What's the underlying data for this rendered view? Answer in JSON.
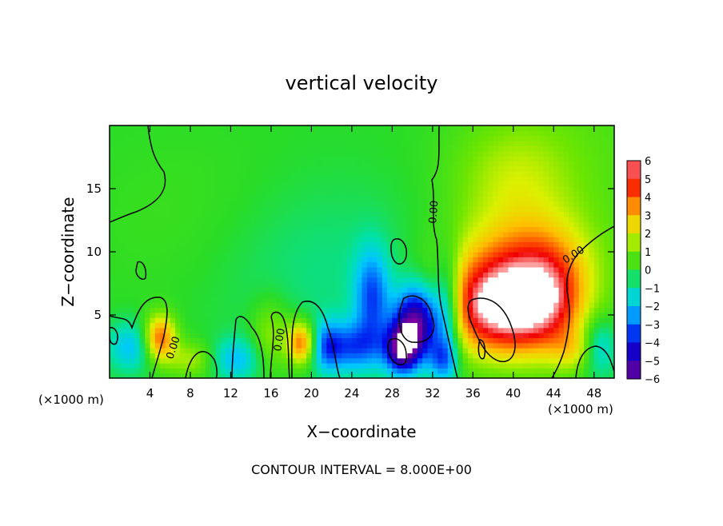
{
  "chart_data": {
    "type": "heatmap",
    "title": "vertical velocity",
    "xlabel": "X−coordinate",
    "ylabel": "Z−coordinate",
    "x_unit_left": "(×1000 m)",
    "x_unit_right": "(×1000 m)",
    "xlim": [
      0,
      50
    ],
    "ylim": [
      0,
      20
    ],
    "x_ticks": [
      4,
      8,
      12,
      16,
      20,
      24,
      28,
      32,
      36,
      40,
      44,
      48
    ],
    "y_ticks": [
      5,
      10,
      15
    ],
    "colorbar": {
      "min": -6,
      "max": 6,
      "ticks": [
        "6",
        "5",
        "4",
        "3",
        "2",
        "1",
        "0",
        "−1",
        "−2",
        "−3",
        "−4",
        "−5",
        "−6"
      ]
    },
    "contour_labels": [
      "0.00",
      "0.00",
      "0.00",
      "0.00"
    ],
    "footer": "CONTOUR INTERVAL = 8.000E+00",
    "features": [
      {
        "x": 39.0,
        "z": 5.5,
        "value": 6.0,
        "sx": 4.2,
        "sz": 2.6
      },
      {
        "x": 41.0,
        "z": 9.0,
        "value": 3.0,
        "sx": 5.0,
        "sz": 3.2
      },
      {
        "x": 43.5,
        "z": 6.5,
        "value": 2.0,
        "sx": 2.4,
        "sz": 3.0
      },
      {
        "x": 30.5,
        "z": 4.5,
        "value": -6.0,
        "sx": 1.6,
        "sz": 2.0
      },
      {
        "x": 29.0,
        "z": 2.3,
        "value": -5.0,
        "sx": 1.2,
        "sz": 1.4
      },
      {
        "x": 26.0,
        "z": 6.5,
        "value": -3.0,
        "sx": 1.2,
        "sz": 2.6
      },
      {
        "x": 24.0,
        "z": 2.5,
        "value": -3.0,
        "sx": 2.2,
        "sz": 1.4
      },
      {
        "x": 33.5,
        "z": 5.5,
        "value": -3.0,
        "sx": 1.0,
        "sz": 3.0
      },
      {
        "x": 5.0,
        "z": 3.2,
        "value": 4.0,
        "sx": 1.1,
        "sz": 1.3
      },
      {
        "x": 19.0,
        "z": 2.8,
        "value": 4.0,
        "sx": 1.0,
        "sz": 1.2
      },
      {
        "x": 16.0,
        "z": 3.5,
        "value": 1.5,
        "sx": 1.4,
        "sz": 2.0
      },
      {
        "x": 8.0,
        "z": 1.5,
        "value": 1.5,
        "sx": 1.6,
        "sz": 1.0
      },
      {
        "x": 46.0,
        "z": 2.2,
        "value": 1.5,
        "sx": 1.6,
        "sz": 1.2
      },
      {
        "x": 2.0,
        "z": 2.5,
        "value": -2.0,
        "sx": 1.6,
        "sz": 1.4
      },
      {
        "x": 12.5,
        "z": 1.5,
        "value": -2.0,
        "sx": 1.6,
        "sz": 1.2
      },
      {
        "x": 21.5,
        "z": 2.5,
        "value": -2.0,
        "sx": 1.0,
        "sz": 1.4
      },
      {
        "x": 48.5,
        "z": 2.5,
        "value": -2.0,
        "sx": 1.2,
        "sz": 1.6
      },
      {
        "x": 33.0,
        "z": 1.5,
        "value": -2.5,
        "sx": 1.0,
        "sz": 1.2
      },
      {
        "x": 20.0,
        "z": 9.0,
        "value": -0.8,
        "sx": 8.0,
        "sz": 5.0
      },
      {
        "x": 10.0,
        "z": 12.0,
        "value": 0.4,
        "sx": 8.0,
        "sz": 5.0
      },
      {
        "x": 45.0,
        "z": 18.0,
        "value": 0.6,
        "sx": 8.0,
        "sz": 5.0
      },
      {
        "x": 40.0,
        "z": 16.0,
        "value": 1.2,
        "sx": 4.0,
        "sz": 3.0
      }
    ]
  }
}
